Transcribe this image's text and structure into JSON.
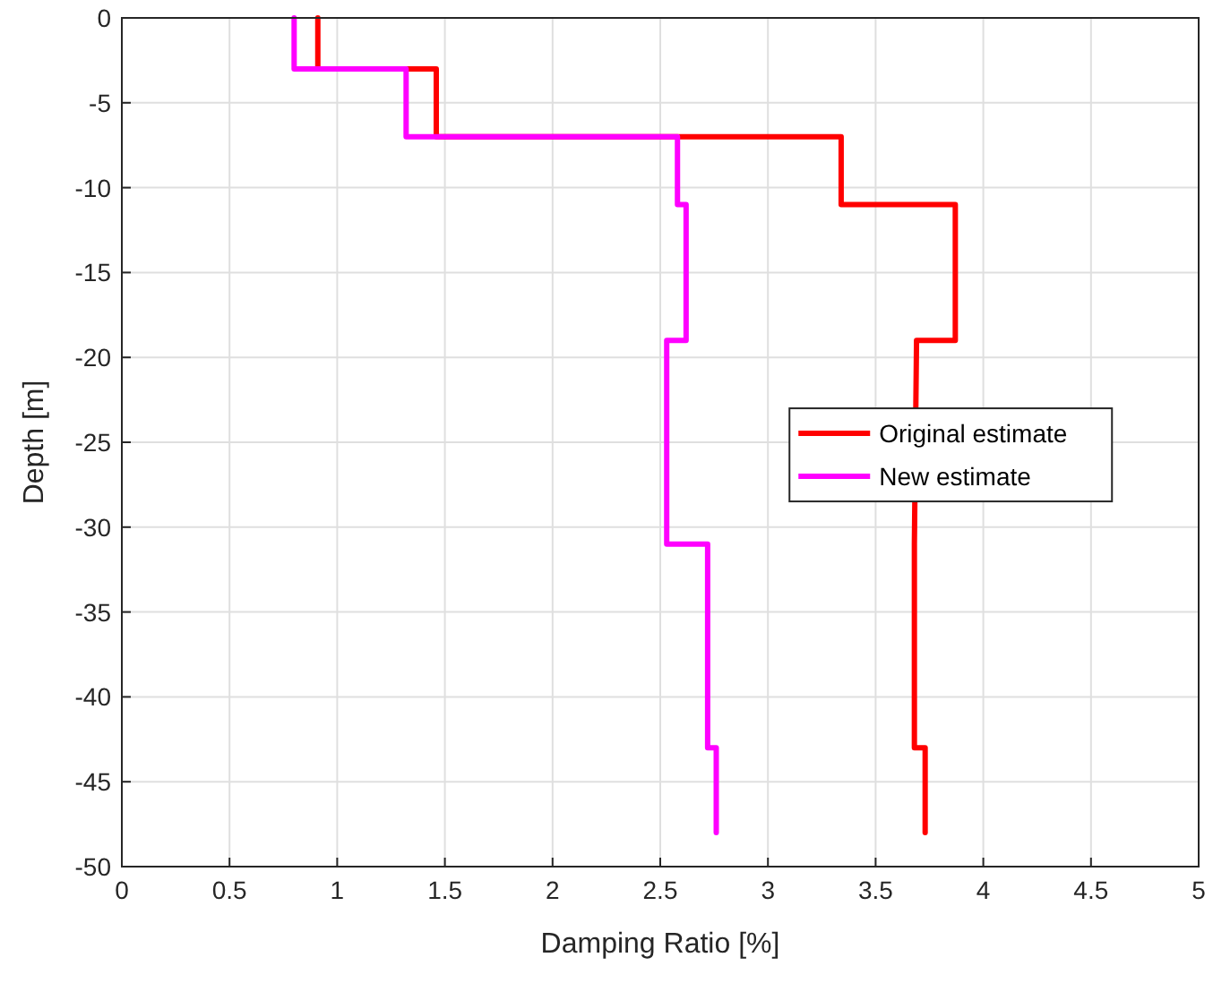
{
  "chart_data": {
    "type": "line",
    "xlabel": "Damping Ratio [%]",
    "ylabel": "Depth [m]",
    "xlim": [
      0,
      5
    ],
    "xticks": [
      0,
      0.5,
      1,
      1.5,
      2,
      2.5,
      3,
      3.5,
      4,
      4.5,
      5
    ],
    "ylim": [
      -50,
      0
    ],
    "yticks": [
      -50,
      -45,
      -40,
      -35,
      -30,
      -25,
      -20,
      -15,
      -10,
      -5,
      0
    ],
    "grid": true,
    "legend": "right",
    "marker": "none",
    "line_style": "solid",
    "series": [
      {
        "name": "Original estimate",
        "color": "#ff0000",
        "x": [
          0.91,
          0.91,
          1.46,
          1.46,
          3.34,
          3.34,
          3.87,
          3.87,
          3.69,
          3.68,
          3.68,
          3.73,
          3.73
        ],
        "values": [
          0,
          -3,
          -3,
          -7,
          -7,
          -11,
          -11,
          -19,
          -19,
          -31,
          -43,
          -43,
          -48
        ]
      },
      {
        "name": "New estimate",
        "color": "#ff00ff",
        "x": [
          0.8,
          0.8,
          1.32,
          1.32,
          2.58,
          2.58,
          2.62,
          2.62,
          2.53,
          2.53,
          2.72,
          2.72,
          2.76,
          2.76
        ],
        "values": [
          0,
          -3,
          -3,
          -7,
          -7,
          -11,
          -11,
          -19,
          -19,
          -31,
          -31,
          -43,
          -43,
          -48
        ]
      }
    ]
  }
}
